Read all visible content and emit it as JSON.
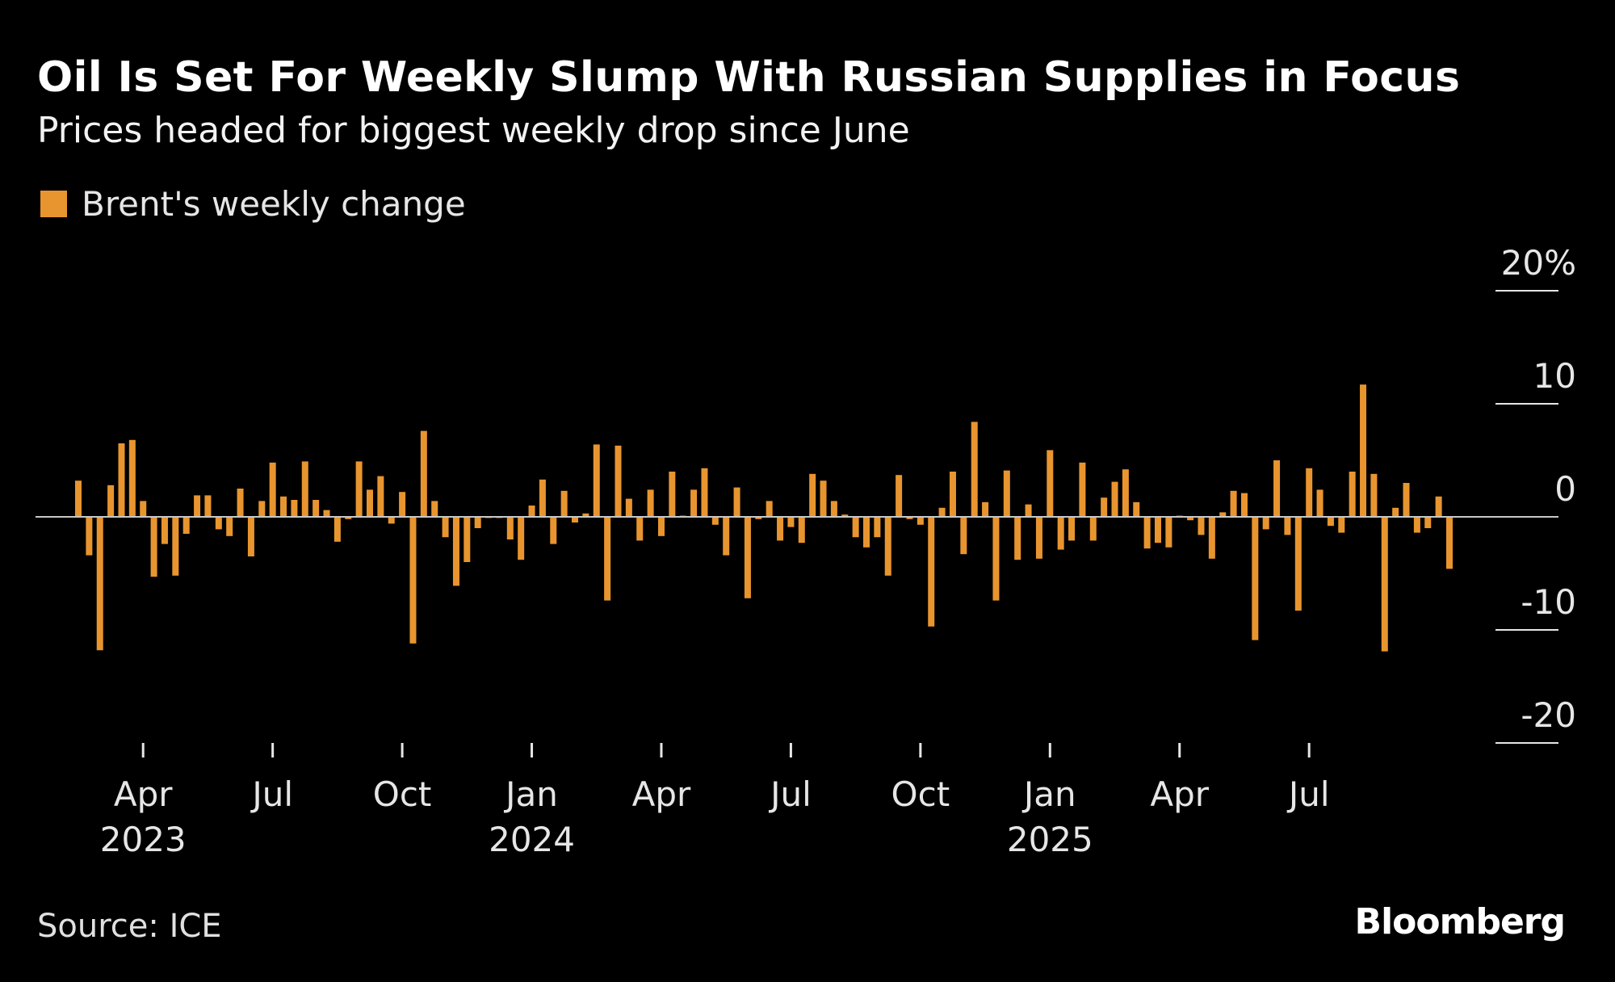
{
  "title": "Oil Is Set For Weekly Slump With Russian Supplies in Focus",
  "subtitle": "Prices headed for biggest weekly drop since June",
  "legend_label": "Brent's weekly change",
  "source": "Source: ICE",
  "brand": "Bloomberg",
  "colors": {
    "bar": "#e8952f",
    "background": "#000000",
    "baseline": "#c8c8c8",
    "text": "#ffffff"
  },
  "chart_data": {
    "type": "bar",
    "ylim": [
      -20,
      20
    ],
    "y_ticks": [
      20,
      10,
      0,
      -10,
      -20
    ],
    "y_tick_labels": [
      "20%",
      "10",
      "0",
      "-10",
      "-20"
    ],
    "grid": false,
    "legend_position": "top-left",
    "x_tick_labels": [
      {
        "month": "Apr",
        "year": "2023",
        "week_index": 6
      },
      {
        "month": "Jul",
        "year": "",
        "week_index": 18
      },
      {
        "month": "Oct",
        "year": "",
        "week_index": 30
      },
      {
        "month": "Jan",
        "year": "2024",
        "week_index": 42
      },
      {
        "month": "Apr",
        "year": "",
        "week_index": 54
      },
      {
        "month": "Jul",
        "year": "",
        "week_index": 66
      },
      {
        "month": "Oct",
        "year": "",
        "week_index": 78
      },
      {
        "month": "Jan",
        "year": "2025",
        "week_index": 90
      },
      {
        "month": "Apr",
        "year": "",
        "week_index": 102
      },
      {
        "month": "Jul",
        "year": "",
        "week_index": 114
      }
    ],
    "series": [
      {
        "name": "Brent's weekly change",
        "values": [
          3.2,
          -3.4,
          -11.8,
          2.8,
          6.5,
          6.8,
          1.4,
          -5.3,
          -2.4,
          -5.2,
          -1.5,
          1.9,
          1.9,
          -1.1,
          -1.7,
          2.5,
          -3.5,
          1.4,
          4.8,
          1.8,
          1.5,
          4.9,
          1.5,
          0.6,
          -2.2,
          -0.2,
          4.9,
          2.4,
          3.6,
          -0.6,
          2.2,
          -11.2,
          7.6,
          1.4,
          -1.8,
          -6.1,
          -4.0,
          -1.0,
          -0.1,
          -0.1,
          -2.0,
          -3.8,
          1.0,
          3.3,
          -2.4,
          2.3,
          -0.5,
          0.3,
          6.4,
          -7.4,
          6.3,
          1.6,
          -2.1,
          2.4,
          -1.7,
          4.0,
          0.1,
          2.4,
          4.3,
          -0.7,
          -3.4,
          2.6,
          -7.2,
          -0.2,
          1.4,
          -2.1,
          -0.9,
          -2.3,
          3.8,
          3.2,
          1.4,
          0.2,
          -1.8,
          -2.7,
          -1.8,
          -5.2,
          3.7,
          -0.2,
          -0.7,
          -9.7,
          0.8,
          4.0,
          -3.3,
          8.4,
          1.3,
          -7.4,
          4.1,
          -3.8,
          1.1,
          -3.7,
          5.9,
          -2.9,
          -2.1,
          4.8,
          -2.1,
          1.7,
          3.1,
          4.2,
          1.3,
          -2.8,
          -2.3,
          -2.7,
          0.1,
          -0.3,
          -1.6,
          -3.7,
          0.4,
          2.3,
          2.1,
          -10.9,
          -1.1,
          5.0,
          -1.6,
          -8.3,
          4.3,
          2.4,
          -0.8,
          -1.4,
          4.0,
          11.7,
          3.8,
          -11.9,
          0.8,
          3.0,
          -1.4,
          -1.0,
          1.8,
          -4.6
        ]
      }
    ]
  }
}
